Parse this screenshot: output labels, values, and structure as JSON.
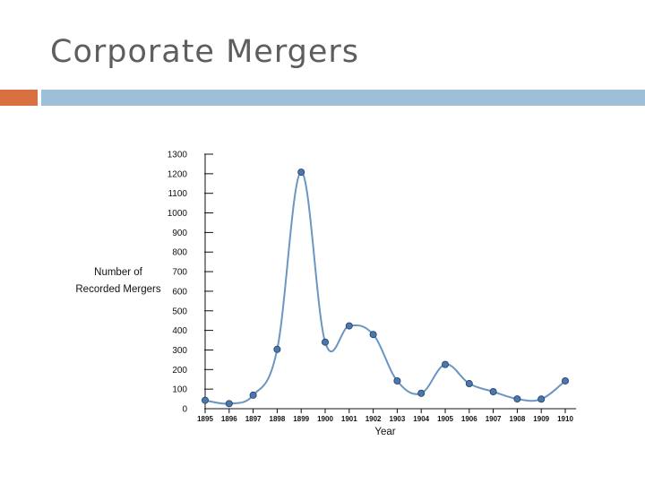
{
  "slide": {
    "title": "Corporate Mergers",
    "accent_colors": {
      "orange": "#d9703f",
      "blue": "#9dbfd8"
    }
  },
  "chart_data": {
    "type": "line",
    "x": [
      "1895",
      "1896",
      "1897",
      "1898",
      "1899",
      "1900",
      "1901",
      "1902",
      "1903",
      "1904",
      "1905",
      "1906",
      "1907",
      "1908",
      "1909",
      "1910"
    ],
    "series": [
      {
        "values": [
          43,
          26,
          69,
          303,
          1208,
          340,
          423,
          379,
          142,
          79,
          226,
          128,
          87,
          50,
          49,
          142
        ]
      }
    ],
    "xlabel": "Year",
    "ylabel": [
      "Number of",
      "Recorded Mergers"
    ],
    "ylim": [
      0,
      1300
    ],
    "yticks": [
      0,
      100,
      200,
      300,
      400,
      500,
      600,
      700,
      800,
      900,
      1000,
      1100,
      1200,
      1300
    ],
    "grid": false,
    "colors": {
      "line": "#6b96c2",
      "marker": "#4a78ad",
      "marker_edge": "#1f3c66",
      "axis": "#111111"
    }
  }
}
